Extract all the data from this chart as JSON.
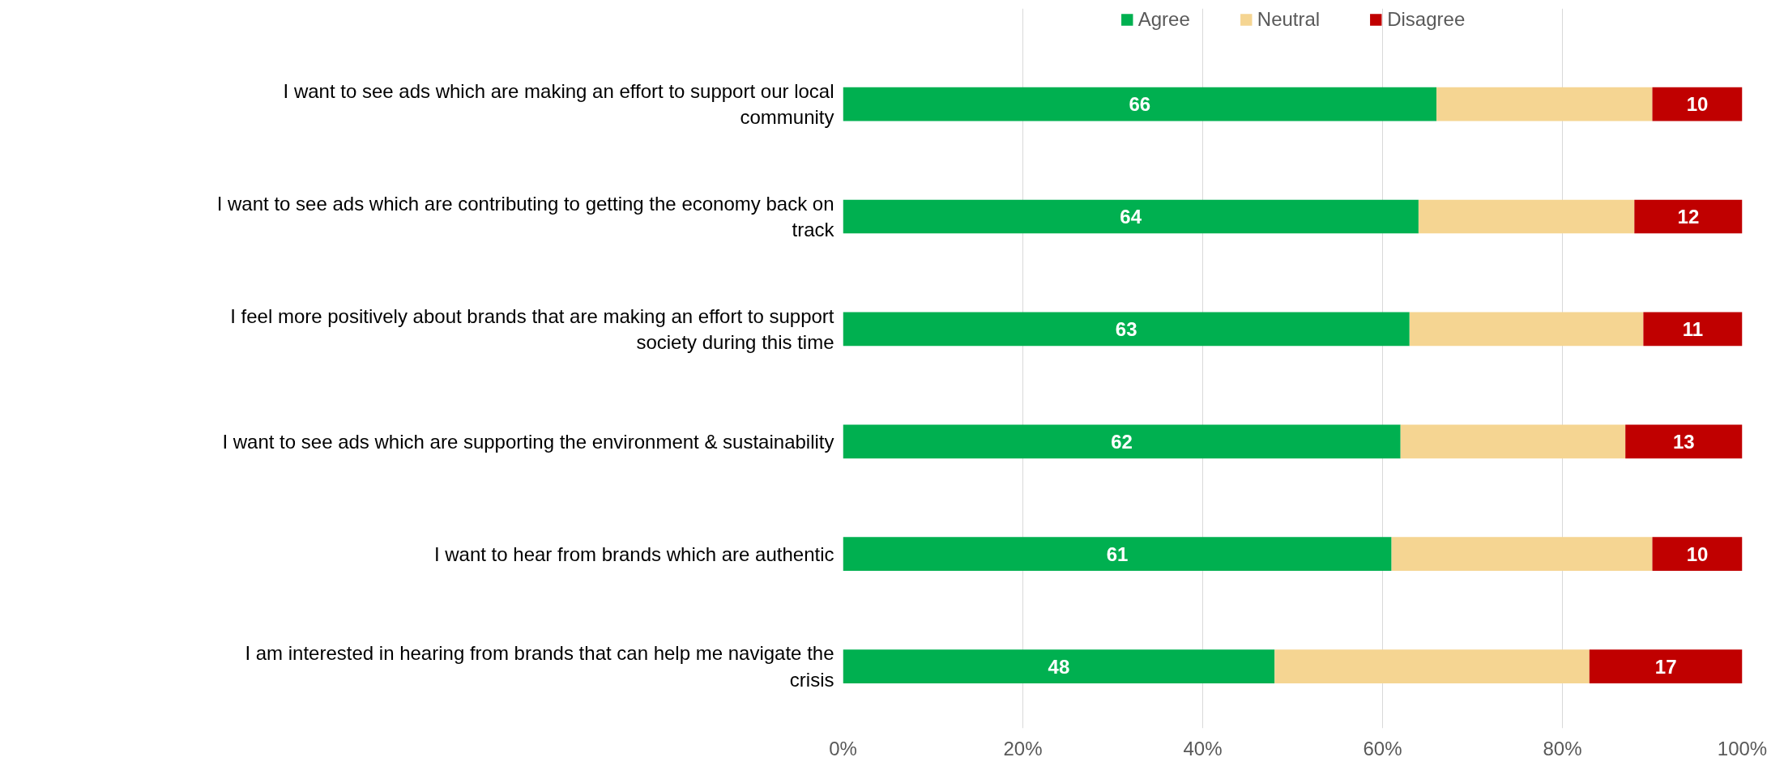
{
  "chart_data": {
    "type": "bar",
    "orientation": "horizontal",
    "stacked": true,
    "categories": [
      "I want to see ads which are making an effort to support our local community",
      "I want to see ads which are contributing to getting the economy back on track",
      "I feel more positively about brands that are making an effort to support society during this time",
      "I want to see ads which are supporting the environment & sustainability",
      "I want to hear from brands which are authentic",
      "I am interested in hearing from brands that can help me navigate the crisis"
    ],
    "series": [
      {
        "name": "Agree",
        "color": "#00b050",
        "values": [
          66,
          64,
          63,
          62,
          61,
          48
        ],
        "value_labels": [
          "66",
          "64",
          "63",
          "62",
          "61",
          "48"
        ]
      },
      {
        "name": "Neutral",
        "color": "#f5d592",
        "values": [
          24,
          24,
          26,
          25,
          29,
          35
        ]
      },
      {
        "name": "Disagree",
        "color": "#c00000",
        "values": [
          10,
          12,
          11,
          13,
          10,
          17
        ],
        "value_labels": [
          "10",
          "12",
          "11",
          "13",
          "10",
          "17"
        ]
      }
    ],
    "xlim": [
      0,
      100
    ],
    "xticks": [
      {
        "value": 0,
        "label": "0%"
      },
      {
        "value": 20,
        "label": "20%"
      },
      {
        "value": 40,
        "label": "40%"
      },
      {
        "value": 60,
        "label": "60%"
      },
      {
        "value": 80,
        "label": "80%"
      },
      {
        "value": 100,
        "label": "100%"
      }
    ],
    "grid": "x",
    "legend": "top"
  }
}
